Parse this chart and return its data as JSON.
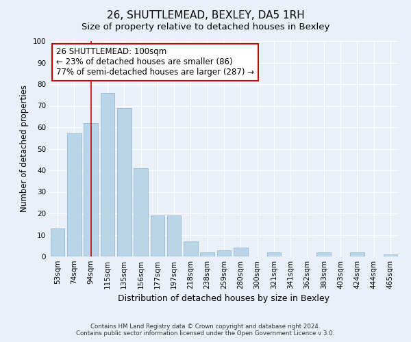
{
  "title": "26, SHUTTLEMEAD, BEXLEY, DA5 1RH",
  "subtitle": "Size of property relative to detached houses in Bexley",
  "xlabel": "Distribution of detached houses by size in Bexley",
  "ylabel": "Number of detached properties",
  "footer_line1": "Contains HM Land Registry data © Crown copyright and database right 2024.",
  "footer_line2": "Contains public sector information licensed under the Open Government Licence v 3.0.",
  "categories": [
    "53sqm",
    "74sqm",
    "94sqm",
    "115sqm",
    "135sqm",
    "156sqm",
    "177sqm",
    "197sqm",
    "218sqm",
    "238sqm",
    "259sqm",
    "280sqm",
    "300sqm",
    "321sqm",
    "341sqm",
    "362sqm",
    "383sqm",
    "403sqm",
    "424sqm",
    "444sqm",
    "465sqm"
  ],
  "values": [
    13,
    57,
    62,
    76,
    69,
    41,
    19,
    19,
    7,
    2,
    3,
    4,
    0,
    2,
    0,
    0,
    2,
    0,
    2,
    0,
    1
  ],
  "bar_color": "#bad4e8",
  "bar_edge_color": "#94b8d4",
  "vline_x_index": 2,
  "vline_color": "#cc0000",
  "annotation_line1": "26 SHUTTLEMEAD: 100sqm",
  "annotation_line2": "← 23% of detached houses are smaller (86)",
  "annotation_line3": "77% of semi-detached houses are larger (287) →",
  "annotation_box_color": "#ffffff",
  "annotation_box_edge_color": "#cc0000",
  "ylim": [
    0,
    100
  ],
  "background_color": "#eaf0f8",
  "grid_color": "#ffffff",
  "title_fontsize": 11,
  "subtitle_fontsize": 9.5,
  "axis_label_fontsize": 9,
  "tick_fontsize": 7.5,
  "annotation_fontsize": 8.5,
  "ylabel_fontsize": 8.5,
  "footer_fontsize": 6.2
}
